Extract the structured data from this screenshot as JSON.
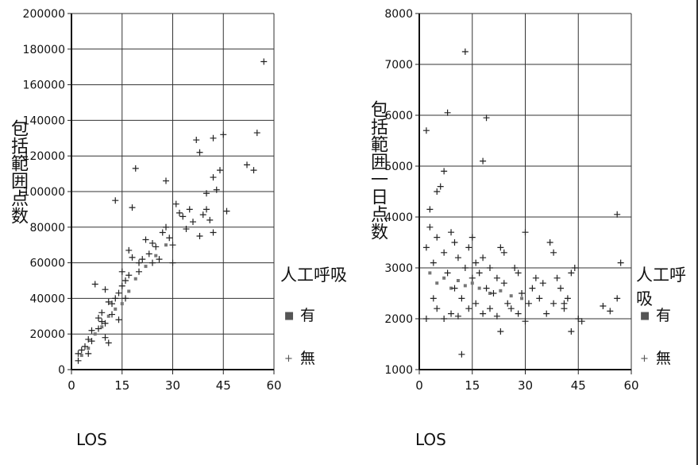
{
  "chart_data": [
    {
      "type": "scatter",
      "title": "",
      "xlabel": "LOS",
      "ylabel": "包括範囲点数",
      "xlim": [
        0,
        60
      ],
      "ylim": [
        0,
        200000
      ],
      "xticks": [
        0,
        15,
        30,
        45,
        60
      ],
      "yticks": [
        0,
        20000,
        40000,
        60000,
        80000,
        100000,
        120000,
        140000,
        160000,
        180000,
        200000
      ],
      "grid": true,
      "legend": {
        "title": "人工呼吸",
        "position": "right",
        "entries": [
          "有",
          "無"
        ]
      },
      "series": [
        {
          "name": "有",
          "marker": "dot",
          "color": "#777777",
          "points": [
            [
              3,
              8000
            ],
            [
              5,
              12000
            ],
            [
              7,
              20000
            ],
            [
              9,
              24000
            ],
            [
              11,
              30000
            ],
            [
              13,
              34000
            ],
            [
              15,
              37000
            ],
            [
              17,
              44000
            ],
            [
              19,
              51000
            ],
            [
              22,
              58000
            ],
            [
              25,
              64000
            ],
            [
              28,
              70000
            ]
          ]
        },
        {
          "name": "無",
          "marker": "plus",
          "color": "#222222",
          "points": [
            [
              2,
              5000
            ],
            [
              2,
              9000
            ],
            [
              3,
              11000
            ],
            [
              4,
              13000
            ],
            [
              5,
              17000
            ],
            [
              6,
              22000
            ],
            [
              7,
              48000
            ],
            [
              8,
              29000
            ],
            [
              9,
              32000
            ],
            [
              10,
              45000
            ],
            [
              10,
              26000
            ],
            [
              12,
              37000
            ],
            [
              13,
              95000
            ],
            [
              14,
              43000
            ],
            [
              15,
              47000
            ],
            [
              15,
              55000
            ],
            [
              16,
              50000
            ],
            [
              17,
              67000
            ],
            [
              18,
              91000
            ],
            [
              18,
              63000
            ],
            [
              19,
              113000
            ],
            [
              20,
              60000
            ],
            [
              22,
              73000
            ],
            [
              24,
              71000
            ],
            [
              25,
              69000
            ],
            [
              28,
              80000
            ],
            [
              28,
              106000
            ],
            [
              30,
              70000
            ],
            [
              30,
              60000
            ],
            [
              31,
              93000
            ],
            [
              32,
              88000
            ],
            [
              33,
              86000
            ],
            [
              34,
              79000
            ],
            [
              35,
              90000
            ],
            [
              37,
              129000
            ],
            [
              38,
              122000
            ],
            [
              38,
              75000
            ],
            [
              40,
              90000
            ],
            [
              40,
              99000
            ],
            [
              41,
              84000
            ],
            [
              42,
              130000
            ],
            [
              42,
              108000
            ],
            [
              42,
              77000
            ],
            [
              43,
              101000
            ],
            [
              44,
              112000
            ],
            [
              45,
              132000
            ],
            [
              46,
              89000
            ],
            [
              52,
              115000
            ],
            [
              54,
              112000
            ],
            [
              55,
              133000
            ],
            [
              57,
              173000
            ],
            [
              10,
              18000
            ],
            [
              11,
              38000
            ],
            [
              12,
              31000
            ],
            [
              14,
              28000
            ],
            [
              16,
              40000
            ],
            [
              20,
              55000
            ],
            [
              23,
              65000
            ],
            [
              26,
              62000
            ],
            [
              27,
              77000
            ],
            [
              29,
              74000
            ],
            [
              36,
              83000
            ],
            [
              39,
              87000
            ],
            [
              5,
              9000
            ],
            [
              6,
              16000
            ],
            [
              8,
              23000
            ],
            [
              9,
              27000
            ],
            [
              11,
              15000
            ],
            [
              13,
              40000
            ],
            [
              17,
              53000
            ],
            [
              21,
              62000
            ],
            [
              24,
              60000
            ]
          ]
        }
      ]
    },
    {
      "type": "scatter",
      "title": "",
      "xlabel": "LOS",
      "ylabel": "包括範囲一日点数",
      "xlim": [
        0,
        60
      ],
      "ylim": [
        1000,
        8000
      ],
      "xticks": [
        0,
        15,
        30,
        45,
        60
      ],
      "yticks": [
        1000,
        2000,
        3000,
        4000,
        5000,
        6000,
        7000,
        8000
      ],
      "grid": true,
      "legend": {
        "title": "人工呼吸",
        "position": "right",
        "entries": [
          "有",
          "無"
        ]
      },
      "series": [
        {
          "name": "有",
          "marker": "dot",
          "color": "#777777",
          "points": [
            [
              3,
              2900
            ],
            [
              5,
              2700
            ],
            [
              7,
              2800
            ],
            [
              9,
              2600
            ],
            [
              11,
              2750
            ],
            [
              13,
              2650
            ],
            [
              15,
              2700
            ],
            [
              17,
              2600
            ],
            [
              20,
              2500
            ],
            [
              23,
              2550
            ],
            [
              26,
              2450
            ],
            [
              29,
              2400
            ]
          ]
        },
        {
          "name": "無",
          "marker": "plus",
          "color": "#222222",
          "points": [
            [
              2,
              5700
            ],
            [
              2,
              2000
            ],
            [
              2,
              3400
            ],
            [
              3,
              4150
            ],
            [
              3,
              3800
            ],
            [
              4,
              2400
            ],
            [
              4,
              3100
            ],
            [
              5,
              4500
            ],
            [
              5,
              3600
            ],
            [
              5,
              2200
            ],
            [
              6,
              4600
            ],
            [
              7,
              4900
            ],
            [
              7,
              2000
            ],
            [
              7,
              3300
            ],
            [
              8,
              6050
            ],
            [
              8,
              2900
            ],
            [
              9,
              3700
            ],
            [
              9,
              2100
            ],
            [
              10,
              2600
            ],
            [
              10,
              3500
            ],
            [
              11,
              2050
            ],
            [
              11,
              3200
            ],
            [
              12,
              1300
            ],
            [
              12,
              2400
            ],
            [
              13,
              7250
            ],
            [
              13,
              3000
            ],
            [
              14,
              2200
            ],
            [
              14,
              3400
            ],
            [
              15,
              2800
            ],
            [
              15,
              3600
            ],
            [
              16,
              2300
            ],
            [
              16,
              3100
            ],
            [
              17,
              2900
            ],
            [
              18,
              5100
            ],
            [
              18,
              2100
            ],
            [
              18,
              3200
            ],
            [
              19,
              5950
            ],
            [
              19,
              2600
            ],
            [
              20,
              3000
            ],
            [
              20,
              2200
            ],
            [
              21,
              2500
            ],
            [
              22,
              2800
            ],
            [
              22,
              2050
            ],
            [
              23,
              3400
            ],
            [
              23,
              1750
            ],
            [
              24,
              2700
            ],
            [
              24,
              3300
            ],
            [
              25,
              2300
            ],
            [
              26,
              2200
            ],
            [
              27,
              3000
            ],
            [
              28,
              2900
            ],
            [
              28,
              2100
            ],
            [
              29,
              2500
            ],
            [
              30,
              3700
            ],
            [
              30,
              1950
            ],
            [
              31,
              2300
            ],
            [
              32,
              2600
            ],
            [
              33,
              2800
            ],
            [
              34,
              2400
            ],
            [
              35,
              2700
            ],
            [
              36,
              2100
            ],
            [
              37,
              3500
            ],
            [
              38,
              2300
            ],
            [
              38,
              3300
            ],
            [
              39,
              2800
            ],
            [
              40,
              2600
            ],
            [
              41,
              2200
            ],
            [
              41,
              2300
            ],
            [
              42,
              2400
            ],
            [
              43,
              1750
            ],
            [
              43,
              2900
            ],
            [
              44,
              3000
            ],
            [
              45,
              2000
            ],
            [
              46,
              1950
            ],
            [
              52,
              2250
            ],
            [
              54,
              2150
            ],
            [
              56,
              4050
            ],
            [
              56,
              2400
            ],
            [
              57,
              3100
            ]
          ]
        }
      ]
    }
  ]
}
